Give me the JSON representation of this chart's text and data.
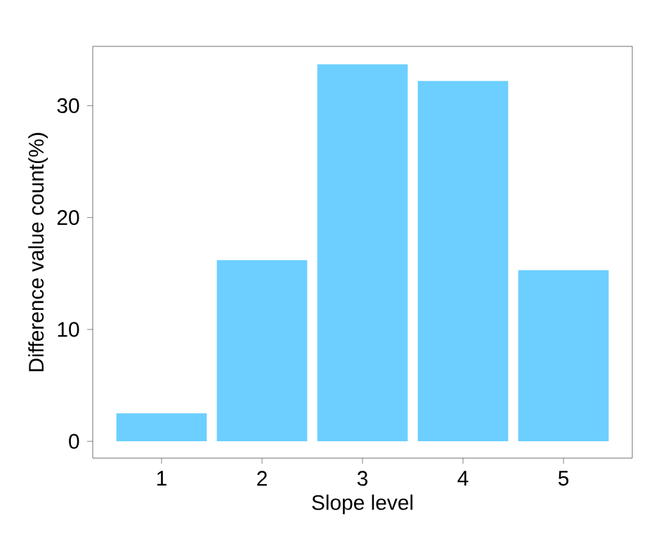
{
  "chart_data": {
    "type": "bar",
    "xlabel": "Slope level",
    "ylabel": "Difference value count(%)",
    "categories": [
      "1",
      "2",
      "3",
      "4",
      "5"
    ],
    "values": [
      2.5,
      16.2,
      33.7,
      32.2,
      15.3
    ],
    "color": "#6ccfff",
    "ylim": [
      -1.5,
      35.3
    ],
    "yticks": [
      0,
      10,
      20,
      30
    ],
    "grid": false
  }
}
